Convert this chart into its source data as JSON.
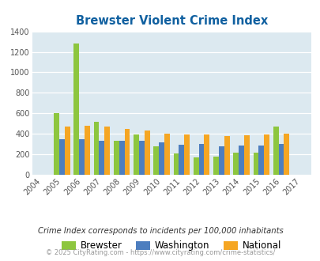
{
  "title": "Brewster Violent Crime Index",
  "years": [
    2004,
    2005,
    2006,
    2007,
    2008,
    2009,
    2010,
    2011,
    2012,
    2013,
    2014,
    2015,
    2016,
    2017
  ],
  "brewster": [
    0,
    600,
    1280,
    520,
    335,
    395,
    280,
    210,
    170,
    175,
    220,
    220,
    470,
    0
  ],
  "washington": [
    0,
    345,
    345,
    330,
    335,
    330,
    315,
    295,
    300,
    275,
    285,
    285,
    305,
    0
  ],
  "national": [
    0,
    470,
    480,
    470,
    450,
    430,
    405,
    395,
    395,
    375,
    385,
    395,
    400,
    0
  ],
  "brewster_color": "#8dc63f",
  "washington_color": "#4d7ebf",
  "national_color": "#f5a623",
  "bg_color": "#dce9f0",
  "title_color": "#1060a0",
  "subtitle": "Crime Index corresponds to incidents per 100,000 inhabitants",
  "footer": "© 2025 CityRating.com - https://www.cityrating.com/crime-statistics/",
  "ylim": [
    0,
    1400
  ],
  "yticks": [
    0,
    200,
    400,
    600,
    800,
    1000,
    1200,
    1400
  ],
  "bar_width": 0.27,
  "legend_labels": [
    "Brewster",
    "Washington",
    "National"
  ]
}
